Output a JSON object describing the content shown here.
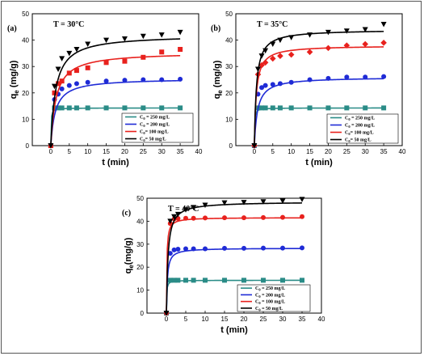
{
  "chart_data": [
    {
      "type": "scatter",
      "panel_label": "(a)",
      "title": "T = 30°C",
      "xlabel": "t (min)",
      "ylabel": "q",
      "ylabel_sub": "e",
      "ylabel_unit": " (mg/g)",
      "xlim": [
        -5,
        40
      ],
      "ylim": [
        0,
        50
      ],
      "xticks": [
        0,
        5,
        10,
        15,
        20,
        25,
        30,
        35,
        40
      ],
      "yticks": [
        0,
        10,
        20,
        30,
        40,
        50
      ],
      "legend_position": "bottom-right",
      "series": [
        {
          "name": "C0 = 250 mg/L",
          "legend": "C",
          "legend_sub": "0",
          "legend_rest": " = 250 mg/L",
          "color": "#2a8c87",
          "marker": "square",
          "x": [
            0,
            1,
            2,
            3,
            5,
            7,
            10,
            15,
            20,
            25,
            30,
            35
          ],
          "y": [
            0,
            14.3,
            14.3,
            14.3,
            14.3,
            14.3,
            14.3,
            14.3,
            14.3,
            14.3,
            14.3,
            14.3
          ],
          "fit": {
            "qe": 14.3,
            "k": 1.0
          }
        },
        {
          "name": "C0 = 200 mg/L",
          "legend": "C",
          "legend_sub": "0",
          "legend_rest": " = 200 mg/L",
          "color": "#1f2bd6",
          "marker": "circle",
          "x": [
            0,
            1,
            2,
            3,
            5,
            7,
            10,
            15,
            20,
            25,
            30,
            35
          ],
          "y": [
            0,
            17.5,
            19.5,
            21.5,
            22.8,
            23.5,
            24,
            24.5,
            24.8,
            25,
            25,
            25.2
          ],
          "fit": {
            "qe": 25.5,
            "k": 0.032
          }
        },
        {
          "name": "C0 = 100 mg/L",
          "legend": "C",
          "legend_sub": "0",
          "legend_rest": "= 100 mg/L",
          "color": "#e8211d",
          "marker": "square",
          "x": [
            0,
            1,
            2,
            3,
            5,
            7,
            10,
            15,
            20,
            25,
            30,
            35
          ],
          "y": [
            0,
            20,
            23.5,
            24.5,
            27.5,
            28.5,
            29.5,
            31.5,
            32,
            33.5,
            35.5,
            36.5
          ],
          "fit": {
            "qe": 35.5,
            "k": 0.02
          }
        },
        {
          "name": "C0 = 50 mg/L",
          "legend": "C",
          "legend_sub": "0",
          "legend_rest": "= 50 mg/L",
          "color": "#000000",
          "marker": "triangle-down",
          "x": [
            0,
            1,
            2,
            3,
            5,
            7,
            10,
            15,
            20,
            25,
            30,
            35
          ],
          "y": [
            0,
            22.5,
            29,
            33,
            35,
            36.5,
            38.5,
            40,
            40.5,
            41.5,
            42,
            43
          ],
          "fit": {
            "qe": 42,
            "k": 0.018
          }
        }
      ]
    },
    {
      "type": "scatter",
      "panel_label": "(b)",
      "title": "T = 35°C",
      "xlabel": "t (min)",
      "ylabel": "q",
      "ylabel_sub": "e",
      "ylabel_unit": " (mg/g)",
      "xlim": [
        -5,
        40
      ],
      "ylim": [
        0,
        50
      ],
      "xticks": [
        0,
        5,
        10,
        15,
        20,
        25,
        30,
        35,
        40
      ],
      "yticks": [
        0,
        10,
        20,
        30,
        40,
        50
      ],
      "legend_position": "bottom-right",
      "series": [
        {
          "name": "C0 = 250 mg/L",
          "legend": "C",
          "legend_sub": "0",
          "legend_rest": " = 250 mg/L",
          "color": "#2a8c87",
          "marker": "square",
          "x": [
            0,
            1,
            2,
            3,
            5,
            7,
            10,
            15,
            20,
            25,
            30,
            35
          ],
          "y": [
            0,
            14.3,
            14.3,
            14.3,
            14.3,
            14.3,
            14.3,
            14.3,
            14.3,
            14.3,
            14.3,
            14.3
          ],
          "fit": {
            "qe": 14.3,
            "k": 1.0
          }
        },
        {
          "name": "C0 = 200 mg/L",
          "legend": "C",
          "legend_sub": "0",
          "legend_rest": " = 200 mg/L",
          "color": "#1f2bd6",
          "marker": "circle",
          "x": [
            0,
            1,
            2,
            3,
            5,
            7,
            10,
            15,
            20,
            25,
            30,
            35
          ],
          "y": [
            0,
            19.5,
            22,
            22.8,
            23.2,
            23.5,
            24,
            25,
            25.5,
            26,
            26,
            26.2
          ],
          "fit": {
            "qe": 26,
            "k": 0.045
          }
        },
        {
          "name": "C0 = 100 mg/L",
          "legend": "C",
          "legend_sub": "0",
          "legend_rest": "= 100 mg/L",
          "color": "#e8211d",
          "marker": "diamond",
          "x": [
            0,
            1,
            2,
            3,
            5,
            7,
            10,
            15,
            20,
            25,
            30,
            35
          ],
          "y": [
            0,
            27,
            30.5,
            31.5,
            33,
            34,
            34.5,
            35.5,
            37,
            38,
            38.5,
            39
          ],
          "fit": {
            "qe": 38,
            "k": 0.05
          }
        },
        {
          "name": "C0 = 50 mg/L",
          "legend": "C",
          "legend_sub": "0",
          "legend_rest": "= 50 mg/L",
          "color": "#000000",
          "marker": "triangle-down",
          "x": [
            0,
            1,
            2,
            3,
            5,
            7,
            10,
            15,
            20,
            25,
            30,
            35
          ],
          "y": [
            0,
            29,
            34,
            36,
            38.5,
            40,
            41,
            42,
            43,
            43.5,
            44,
            46
          ],
          "fit": {
            "qe": 44,
            "k": 0.04
          }
        }
      ]
    },
    {
      "type": "scatter",
      "panel_label": "(c)",
      "title": "T = 40°C",
      "xlabel": "t (min)",
      "ylabel": "q",
      "ylabel_sub": "e",
      "ylabel_unit": "(mg/g)",
      "xlim": [
        -5,
        40
      ],
      "ylim": [
        0,
        50
      ],
      "xticks": [
        0,
        5,
        10,
        15,
        20,
        25,
        30,
        35,
        40
      ],
      "yticks": [
        0,
        10,
        20,
        30,
        40,
        50
      ],
      "legend_position": "bottom-right",
      "series": [
        {
          "name": "C0 = 250 mg/L",
          "legend": "C",
          "legend_sub": "0",
          "legend_rest": " = 250 mg/L",
          "color": "#2a8c87",
          "marker": "square",
          "x": [
            0,
            1,
            2,
            3,
            5,
            7,
            10,
            15,
            20,
            25,
            30,
            35
          ],
          "y": [
            0,
            14.3,
            14.3,
            14.3,
            14.3,
            14.3,
            14.3,
            14.3,
            14.3,
            14.3,
            14.3,
            14.3
          ],
          "fit": {
            "qe": 14.3,
            "k": 1.0
          }
        },
        {
          "name": "C0 = 200 mg/L",
          "legend": "C",
          "legend_sub": "0",
          "legend_rest": " = 200 mg/L",
          "color": "#1f2bd6",
          "marker": "circle",
          "x": [
            0,
            1,
            2,
            3,
            5,
            7,
            10,
            15,
            20,
            25,
            30,
            35
          ],
          "y": [
            0,
            26,
            27.5,
            27.8,
            28,
            28,
            28,
            28.2,
            28.2,
            28.3,
            28.3,
            28.4
          ],
          "fit": {
            "qe": 28.3,
            "k": 0.15
          }
        },
        {
          "name": "C0 = 100 mg/L",
          "legend": "C",
          "legend_sub": "0",
          "legend_rest": " = 100 mg/L",
          "color": "#e8211d",
          "marker": "circle",
          "x": [
            0,
            1,
            2,
            3,
            5,
            7,
            10,
            15,
            20,
            25,
            30,
            35
          ],
          "y": [
            0,
            39,
            41,
            41.2,
            41.3,
            41.3,
            41.4,
            41.5,
            41.5,
            41.6,
            41.7,
            42
          ],
          "fit": {
            "qe": 41.6,
            "k": 0.2
          }
        },
        {
          "name": "C0 = 50 mg/L",
          "legend": "C",
          "legend_sub": "0",
          "legend_rest": " = 50 mg/L",
          "color": "#000000",
          "marker": "triangle-down",
          "x": [
            0,
            1,
            2,
            3,
            5,
            7,
            10,
            15,
            20,
            25,
            30,
            35
          ],
          "y": [
            0,
            40,
            42,
            43,
            45,
            46,
            47,
            48,
            48.2,
            48.5,
            48.8,
            49.5
          ],
          "fit": {
            "qe": 48.5,
            "k": 0.05
          }
        }
      ]
    }
  ]
}
